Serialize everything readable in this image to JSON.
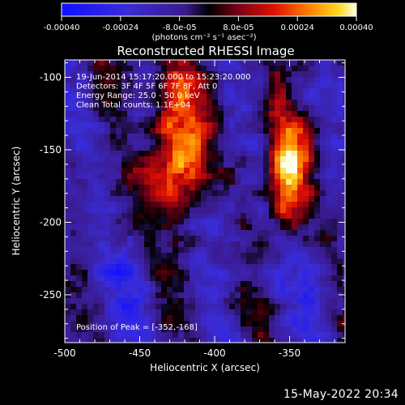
{
  "colorbar": {
    "ticks": [
      "-0.00040",
      "-0.00024",
      "-8.0e-05",
      "8.0e-05",
      "0.00024",
      "0.00040"
    ],
    "unit_label": "(photons cm⁻² s⁻¹ asec⁻²)",
    "range": [
      -0.0004,
      0.0004
    ]
  },
  "chart_data": {
    "type": "heatmap",
    "title": "Reconstructed RHESSI Image",
    "xlabel": "Heliocentric X (arcsec)",
    "ylabel": "Heliocentric Y (arcsec)",
    "xlim": [
      -500,
      -313
    ],
    "ylim": [
      -283,
      -88
    ],
    "xticks": [
      "-500",
      "-450",
      "-400",
      "-350"
    ],
    "yticks": [
      "-100",
      "-150",
      "-200",
      "-250"
    ],
    "xtick_values": [
      -500,
      -450,
      -400,
      -350
    ],
    "ytick_values": [
      -100,
      -150,
      -200,
      -250
    ],
    "annotations": [
      "19-Jun-2014 15:17:20.000 to 15:23:20.000",
      "Detectors: 3F 4F 5F 6F 7F 8F, Att 0",
      "Energy Range: 25.0 - 50.0 keV",
      "Clean     Total counts: 1.1E+04"
    ],
    "peak_label": "Position of Peak = [-352,-168]",
    "peak_position": [
      -352,
      -168
    ],
    "sources": [
      {
        "x": -425,
        "y": -150
      },
      {
        "x": -352,
        "y": -168
      }
    ]
  },
  "footer": {
    "timestamp": "15-May-2022 20:34"
  }
}
